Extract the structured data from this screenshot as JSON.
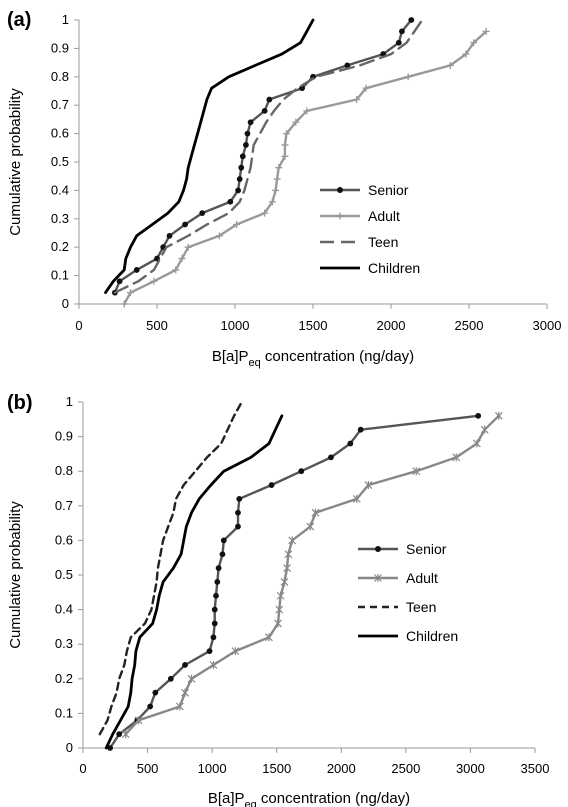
{
  "chart_data": [
    {
      "type": "line",
      "panel_label": "(a)",
      "xlabel_main": "B[a]P",
      "xlabel_sub": "eq",
      "xlabel_rest": " concentration (ng/day)",
      "ylabel": "Cumulative probability",
      "xlim": [
        0,
        3000
      ],
      "ylim": [
        0,
        1
      ],
      "xticks": [
        0,
        500,
        1000,
        1500,
        2000,
        2500,
        3000
      ],
      "yticks": [
        0,
        0.1,
        0.2,
        0.3,
        0.4,
        0.5,
        0.6,
        0.7,
        0.8,
        0.9,
        1
      ],
      "ytick_labels": [
        "0",
        "0.1",
        "0.2",
        "0.3",
        "0.4",
        "0.5",
        "0.6",
        "0.7",
        "0.8",
        "0.9",
        "1"
      ],
      "legend_position": "right",
      "series": [
        {
          "name": "Senior",
          "color": "#555555",
          "style": "solid",
          "marker": "dot",
          "points": [
            [
              230,
              0.04
            ],
            [
              260,
              0.08
            ],
            [
              370,
              0.12
            ],
            [
              500,
              0.16
            ],
            [
              540,
              0.2
            ],
            [
              580,
              0.24
            ],
            [
              680,
              0.28
            ],
            [
              790,
              0.32
            ],
            [
              970,
              0.36
            ],
            [
              1020,
              0.4
            ],
            [
              1030,
              0.44
            ],
            [
              1040,
              0.48
            ],
            [
              1050,
              0.52
            ],
            [
              1070,
              0.56
            ],
            [
              1080,
              0.6
            ],
            [
              1100,
              0.64
            ],
            [
              1190,
              0.68
            ],
            [
              1220,
              0.72
            ],
            [
              1430,
              0.76
            ],
            [
              1500,
              0.8
            ],
            [
              1720,
              0.84
            ],
            [
              1950,
              0.88
            ],
            [
              2050,
              0.92
            ],
            [
              2070,
              0.96
            ],
            [
              2130,
              1.0
            ]
          ]
        },
        {
          "name": "Adult",
          "color": "#999999",
          "style": "solid",
          "marker": "plus",
          "points": [
            [
              290,
              0.0
            ],
            [
              330,
              0.04
            ],
            [
              480,
              0.08
            ],
            [
              620,
              0.12
            ],
            [
              660,
              0.16
            ],
            [
              700,
              0.2
            ],
            [
              900,
              0.24
            ],
            [
              1010,
              0.28
            ],
            [
              1190,
              0.32
            ],
            [
              1240,
              0.36
            ],
            [
              1260,
              0.4
            ],
            [
              1270,
              0.44
            ],
            [
              1280,
              0.48
            ],
            [
              1320,
              0.52
            ],
            [
              1320,
              0.56
            ],
            [
              1330,
              0.6
            ],
            [
              1390,
              0.64
            ],
            [
              1460,
              0.68
            ],
            [
              1780,
              0.72
            ],
            [
              1840,
              0.76
            ],
            [
              2110,
              0.8
            ],
            [
              2380,
              0.84
            ],
            [
              2480,
              0.88
            ],
            [
              2530,
              0.92
            ],
            [
              2610,
              0.96
            ]
          ]
        },
        {
          "name": "Teen",
          "color": "#666666",
          "style": "longdash",
          "marker": "none",
          "points": [
            [
              230,
              0.04
            ],
            [
              380,
              0.08
            ],
            [
              480,
              0.12
            ],
            [
              520,
              0.16
            ],
            [
              560,
              0.2
            ],
            [
              700,
              0.24
            ],
            [
              820,
              0.28
            ],
            [
              960,
              0.32
            ],
            [
              1030,
              0.36
            ],
            [
              1060,
              0.4
            ],
            [
              1080,
              0.44
            ],
            [
              1100,
              0.48
            ],
            [
              1110,
              0.52
            ],
            [
              1120,
              0.56
            ],
            [
              1160,
              0.6
            ],
            [
              1200,
              0.64
            ],
            [
              1250,
              0.68
            ],
            [
              1310,
              0.72
            ],
            [
              1400,
              0.76
            ],
            [
              1520,
              0.8
            ],
            [
              1800,
              0.84
            ],
            [
              2000,
              0.88
            ],
            [
              2100,
              0.92
            ],
            [
              2150,
              0.96
            ],
            [
              2200,
              1.0
            ]
          ]
        },
        {
          "name": "Children",
          "color": "#000000",
          "style": "solid",
          "marker": "none",
          "points": [
            [
              170,
              0.04
            ],
            [
              220,
              0.08
            ],
            [
              290,
              0.12
            ],
            [
              300,
              0.16
            ],
            [
              330,
              0.2
            ],
            [
              370,
              0.24
            ],
            [
              470,
              0.28
            ],
            [
              570,
              0.32
            ],
            [
              640,
              0.36
            ],
            [
              670,
              0.4
            ],
            [
              690,
              0.44
            ],
            [
              700,
              0.48
            ],
            [
              720,
              0.52
            ],
            [
              740,
              0.56
            ],
            [
              760,
              0.6
            ],
            [
              780,
              0.64
            ],
            [
              800,
              0.68
            ],
            [
              820,
              0.72
            ],
            [
              850,
              0.76
            ],
            [
              960,
              0.8
            ],
            [
              1130,
              0.84
            ],
            [
              1300,
              0.88
            ],
            [
              1420,
              0.92
            ],
            [
              1460,
              0.96
            ],
            [
              1500,
              1.0
            ]
          ]
        }
      ]
    },
    {
      "type": "line",
      "panel_label": "(b)",
      "xlabel_main": "B[a]P",
      "xlabel_sub": "eq",
      "xlabel_rest": " concentration (ng/day)",
      "ylabel": "Cumulative probability",
      "xlim": [
        0,
        3500
      ],
      "ylim": [
        0,
        1
      ],
      "xticks": [
        0,
        500,
        1000,
        1500,
        2000,
        2500,
        3000,
        3500
      ],
      "yticks": [
        0,
        0.1,
        0.2,
        0.3,
        0.4,
        0.5,
        0.6,
        0.7,
        0.8,
        0.9,
        1
      ],
      "ytick_labels": [
        "0",
        "0.1",
        "0.2",
        "0.3",
        "0.4",
        "0.5",
        "0.6",
        "0.7",
        "0.8",
        "0.9",
        "1"
      ],
      "legend_position": "right",
      "series": [
        {
          "name": "Senior",
          "color": "#555555",
          "style": "solid",
          "marker": "dot",
          "points": [
            [
              210,
              0.0
            ],
            [
              280,
              0.04
            ],
            [
              420,
              0.08
            ],
            [
              520,
              0.12
            ],
            [
              560,
              0.16
            ],
            [
              680,
              0.2
            ],
            [
              790,
              0.24
            ],
            [
              980,
              0.28
            ],
            [
              1010,
              0.32
            ],
            [
              1020,
              0.36
            ],
            [
              1020,
              0.4
            ],
            [
              1030,
              0.44
            ],
            [
              1040,
              0.48
            ],
            [
              1050,
              0.52
            ],
            [
              1080,
              0.56
            ],
            [
              1090,
              0.6
            ],
            [
              1200,
              0.64
            ],
            [
              1200,
              0.68
            ],
            [
              1210,
              0.72
            ],
            [
              1460,
              0.76
            ],
            [
              1690,
              0.8
            ],
            [
              1920,
              0.84
            ],
            [
              2070,
              0.88
            ],
            [
              2150,
              0.92
            ],
            [
              3060,
              0.96
            ]
          ]
        },
        {
          "name": "Adult",
          "color": "#888888",
          "style": "solid",
          "marker": "asterisk",
          "points": [
            [
              330,
              0.04
            ],
            [
              430,
              0.08
            ],
            [
              750,
              0.12
            ],
            [
              790,
              0.16
            ],
            [
              840,
              0.2
            ],
            [
              1010,
              0.24
            ],
            [
              1180,
              0.28
            ],
            [
              1440,
              0.32
            ],
            [
              1510,
              0.36
            ],
            [
              1520,
              0.4
            ],
            [
              1530,
              0.44
            ],
            [
              1560,
              0.48
            ],
            [
              1580,
              0.52
            ],
            [
              1590,
              0.56
            ],
            [
              1620,
              0.6
            ],
            [
              1760,
              0.64
            ],
            [
              1800,
              0.68
            ],
            [
              2120,
              0.72
            ],
            [
              2210,
              0.76
            ],
            [
              2580,
              0.8
            ],
            [
              2890,
              0.84
            ],
            [
              3050,
              0.88
            ],
            [
              3110,
              0.92
            ],
            [
              3220,
              0.96
            ]
          ]
        },
        {
          "name": "Teen",
          "color": "#222222",
          "style": "shortdash",
          "marker": "none",
          "points": [
            [
              130,
              0.04
            ],
            [
              190,
              0.08
            ],
            [
              220,
              0.12
            ],
            [
              260,
              0.16
            ],
            [
              280,
              0.2
            ],
            [
              320,
              0.24
            ],
            [
              340,
              0.28
            ],
            [
              370,
              0.32
            ],
            [
              480,
              0.36
            ],
            [
              530,
              0.4
            ],
            [
              550,
              0.44
            ],
            [
              570,
              0.48
            ],
            [
              580,
              0.52
            ],
            [
              600,
              0.56
            ],
            [
              620,
              0.6
            ],
            [
              660,
              0.64
            ],
            [
              700,
              0.68
            ],
            [
              720,
              0.72
            ],
            [
              780,
              0.76
            ],
            [
              870,
              0.8
            ],
            [
              960,
              0.84
            ],
            [
              1070,
              0.88
            ],
            [
              1120,
              0.92
            ],
            [
              1170,
              0.96
            ],
            [
              1230,
              1.0
            ]
          ]
        },
        {
          "name": "Children",
          "color": "#000000",
          "style": "solid",
          "marker": "none",
          "points": [
            [
              180,
              0.0
            ],
            [
              230,
              0.04
            ],
            [
              290,
              0.08
            ],
            [
              350,
              0.12
            ],
            [
              370,
              0.16
            ],
            [
              380,
              0.2
            ],
            [
              400,
              0.24
            ],
            [
              410,
              0.28
            ],
            [
              440,
              0.32
            ],
            [
              540,
              0.36
            ],
            [
              570,
              0.4
            ],
            [
              590,
              0.44
            ],
            [
              620,
              0.48
            ],
            [
              700,
              0.52
            ],
            [
              760,
              0.56
            ],
            [
              780,
              0.6
            ],
            [
              800,
              0.64
            ],
            [
              840,
              0.68
            ],
            [
              900,
              0.72
            ],
            [
              990,
              0.76
            ],
            [
              1090,
              0.8
            ],
            [
              1300,
              0.84
            ],
            [
              1440,
              0.88
            ],
            [
              1490,
              0.92
            ],
            [
              1540,
              0.96
            ]
          ]
        }
      ]
    }
  ]
}
